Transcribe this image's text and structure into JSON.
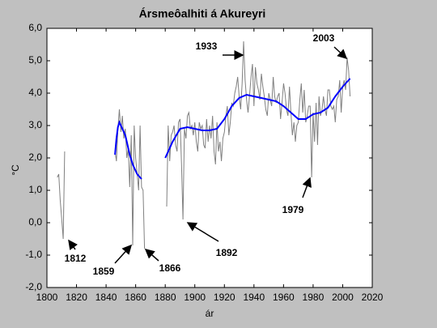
{
  "chart_data": {
    "type": "line",
    "title": "Ársmeôalhiti á Akureyri",
    "x_label": "ár",
    "y_label": "°C",
    "xlim": [
      1800,
      2020
    ],
    "xticks": [
      1800,
      1820,
      1840,
      1860,
      1880,
      1900,
      1920,
      1940,
      1960,
      1980,
      2000,
      2020
    ],
    "ylim": [
      -2,
      6
    ],
    "yticks": [
      {
        "value": -2,
        "label": "-2,0"
      },
      {
        "value": -1,
        "label": "-1,0"
      },
      {
        "value": 0,
        "label": "0,0"
      },
      {
        "value": 1,
        "label": "1,0"
      },
      {
        "value": 2,
        "label": "2,0"
      },
      {
        "value": 3,
        "label": "3,0"
      },
      {
        "value": 4,
        "label": "4,0"
      },
      {
        "value": 5,
        "label": "5,0"
      },
      {
        "value": 6,
        "label": "6,0"
      }
    ],
    "grid": false,
    "annotations": [
      "1812",
      "1859",
      "1866",
      "1892",
      "1933",
      "1979",
      "2003"
    ],
    "series": [
      {
        "color": "#808080",
        "x": [
          1807,
          1808,
          1809,
          1810,
          1811,
          1812,
          1813,
          1846,
          1847,
          1848,
          1849,
          1850,
          1851,
          1852,
          1853,
          1854,
          1855,
          1856,
          1857,
          1858,
          1859,
          1860,
          1861,
          1862,
          1863,
          1864,
          1865,
          1866,
          1867,
          1881,
          1882,
          1883,
          1884,
          1885,
          1886,
          1887,
          1888,
          1889,
          1890,
          1891,
          1892,
          1893,
          1894,
          1895,
          1896,
          1897,
          1898,
          1899,
          1900,
          1901,
          1902,
          1903,
          1904,
          1905,
          1906,
          1907,
          1908,
          1909,
          1910,
          1911,
          1912,
          1913,
          1914,
          1915,
          1916,
          1917,
          1918,
          1919,
          1920,
          1921,
          1922,
          1923,
          1924,
          1925,
          1926,
          1927,
          1928,
          1929,
          1930,
          1931,
          1932,
          1933,
          1934,
          1935,
          1936,
          1937,
          1938,
          1939,
          1940,
          1941,
          1942,
          1943,
          1944,
          1945,
          1946,
          1947,
          1948,
          1949,
          1950,
          1951,
          1952,
          1953,
          1954,
          1955,
          1956,
          1957,
          1958,
          1959,
          1960,
          1961,
          1962,
          1963,
          1964,
          1965,
          1966,
          1967,
          1968,
          1969,
          1970,
          1971,
          1972,
          1973,
          1974,
          1975,
          1976,
          1977,
          1978,
          1979,
          1980,
          1981,
          1982,
          1983,
          1984,
          1985,
          1986,
          1987,
          1988,
          1989,
          1990,
          1991,
          1992,
          1993,
          1994,
          1995,
          1996,
          1997,
          1998,
          1999,
          2000,
          2001,
          2002,
          2003,
          2004,
          2005
        ],
        "values": [
          1.4,
          1.5,
          0.7,
          0.1,
          -0.5,
          2.2,
          null,
          2.2,
          1.9,
          2.9,
          3.5,
          2.8,
          3.3,
          2.6,
          2.9,
          2.0,
          2.3,
          1.1,
          2.7,
          -0.7,
          3.0,
          2.0,
          1.5,
          1.0,
          3.0,
          1.1,
          1.0,
          -0.8,
          null,
          0.5,
          3.0,
          1.9,
          2.7,
          2.8,
          3.0,
          2.4,
          2.2,
          3.1,
          3.2,
          1.8,
          0.1,
          2.9,
          2.6,
          3.3,
          3.4,
          2.9,
          3.0,
          2.7,
          3.1,
          2.5,
          2.2,
          3.1,
          2.9,
          3.0,
          2.4,
          2.3,
          3.2,
          2.5,
          3.0,
          2.6,
          3.3,
          2.2,
          1.8,
          3.1,
          2.2,
          2.5,
          1.9,
          2.6,
          2.8,
          3.3,
          3.6,
          2.7,
          3.1,
          3.7,
          3.6,
          4.0,
          4.2,
          4.5,
          3.9,
          3.5,
          4.3,
          5.6,
          4.4,
          3.8,
          3.4,
          3.9,
          4.5,
          4.9,
          3.6,
          4.8,
          4.3,
          4.1,
          3.8,
          4.6,
          4.2,
          3.9,
          3.5,
          3.3,
          4.0,
          3.8,
          3.6,
          4.5,
          3.9,
          3.7,
          3.9,
          4.0,
          3.2,
          3.7,
          4.3,
          4.0,
          3.5,
          3.3,
          4.2,
          3.4,
          2.7,
          3.1,
          2.5,
          3.0,
          3.1,
          3.8,
          4.3,
          3.4,
          4.1,
          3.1,
          3.3,
          3.6,
          3.6,
          1.4,
          3.4,
          2.5,
          3.7,
          2.4,
          3.9,
          3.3,
          3.5,
          3.9,
          3.5,
          3.3,
          4.1,
          4.1,
          3.6,
          3.5,
          3.6,
          3.1,
          3.8,
          3.9,
          4.4,
          3.4,
          4.2,
          4.4,
          4.1,
          5.1,
          4.7,
          3.9
        ]
      },
      {
        "color": "#0000ff",
        "x": [
          1846,
          1847,
          1848,
          1849,
          1850,
          1851,
          1852,
          1853,
          1854,
          1855,
          1856,
          1857,
          1858,
          1859,
          1860,
          1861,
          1862,
          1863,
          1864,
          1865,
          1880,
          1885,
          1890,
          1895,
          1900,
          1905,
          1910,
          1915,
          1920,
          1925,
          1930,
          1935,
          1940,
          1945,
          1950,
          1955,
          1960,
          1965,
          1970,
          1975,
          1980,
          1985,
          1990,
          1995,
          2000,
          2005
        ],
        "values": [
          2.1,
          2.6,
          2.95,
          3.1,
          3.0,
          2.9,
          2.8,
          2.7,
          2.5,
          2.3,
          2.1,
          1.95,
          1.8,
          1.7,
          1.6,
          1.5,
          1.45,
          1.4,
          1.35,
          null,
          2.0,
          2.5,
          2.9,
          2.95,
          2.9,
          2.85,
          2.85,
          2.9,
          3.2,
          3.6,
          3.85,
          3.95,
          3.9,
          3.85,
          3.8,
          3.75,
          3.6,
          3.4,
          3.2,
          3.2,
          3.35,
          3.4,
          3.55,
          3.9,
          4.2,
          4.45
        ]
      }
    ]
  }
}
